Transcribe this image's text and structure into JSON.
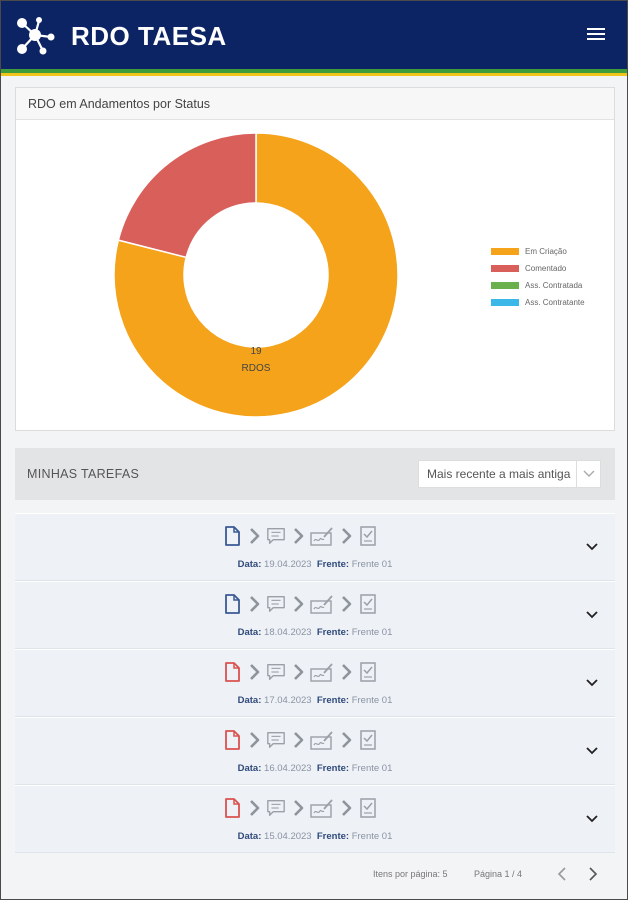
{
  "header": {
    "brand": "RDO TAESA",
    "colors": {
      "bar": "#0c2464",
      "stripe_green": "#3f9c3a",
      "stripe_yellow": "#f0c419"
    },
    "logo_icon": "network-nodes-icon",
    "menu_icon": "hamburger-menu-icon"
  },
  "chart_card": {
    "title": "RDO em Andamentos por Status",
    "center_value": "19",
    "center_label": "RDOS"
  },
  "chart_data": {
    "type": "pie",
    "title": "RDO em Andamentos por Status",
    "categories": [
      "Em Criação",
      "Comentado",
      "Ass. Contratada",
      "Ass. Contratante"
    ],
    "values": [
      15,
      4,
      0,
      0
    ],
    "colors": [
      "#f4a31a",
      "#d95f5a",
      "#6ab04c",
      "#3cb8e8"
    ],
    "legend_position": "right",
    "donut": true
  },
  "tasks": {
    "title": "MINHAS TAREFAS",
    "sort_value": "Mais recente a mais antiga",
    "date_label": "Data:",
    "front_label": "Frente:",
    "items": [
      {
        "date": "19.04.2023",
        "front": "Frente 01",
        "doc_status": "blue"
      },
      {
        "date": "18.04.2023",
        "front": "Frente 01",
        "doc_status": "blue"
      },
      {
        "date": "17.04.2023",
        "front": "Frente 01",
        "doc_status": "red"
      },
      {
        "date": "16.04.2023",
        "front": "Frente 01",
        "doc_status": "red"
      },
      {
        "date": "15.04.2023",
        "front": "Frente 01",
        "doc_status": "red"
      }
    ],
    "status_colors": {
      "blue": "#3a5a94",
      "red": "#d9534f",
      "pending": "#9aa0a8"
    },
    "step_icons": [
      "document-icon",
      "comment-icon",
      "signature-icon",
      "checklist-icon"
    ]
  },
  "pager": {
    "per_page": "Itens por página: 5",
    "page_info": "Página 1 / 4"
  }
}
